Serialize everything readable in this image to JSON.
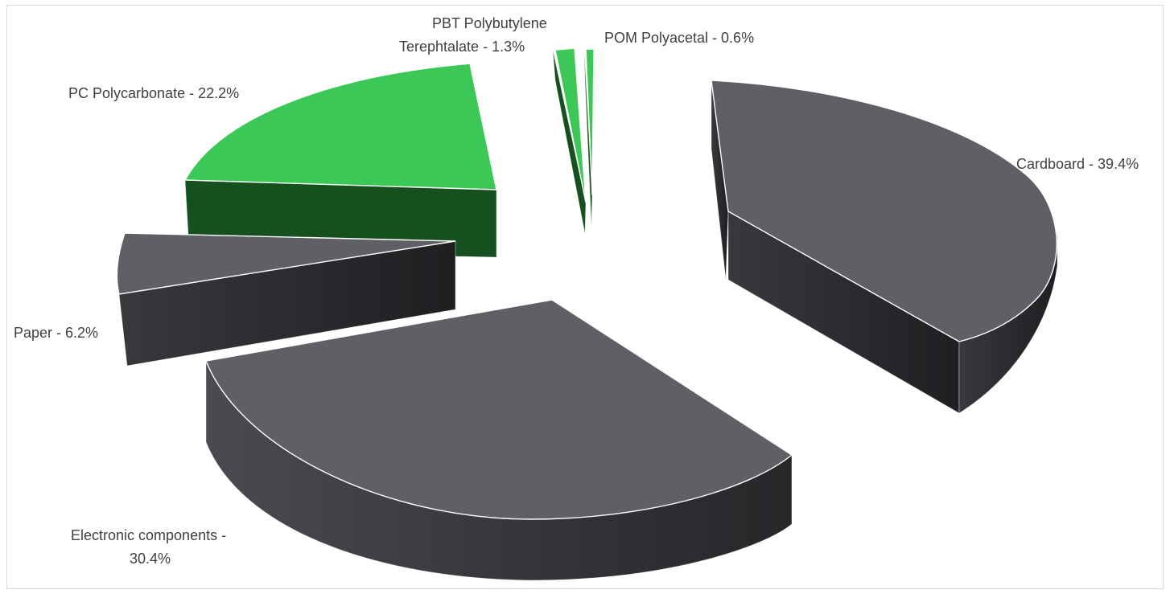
{
  "chart_data": {
    "type": "pie",
    "style": "3d-exploded",
    "title": "",
    "legend": "none",
    "data_labels": "category - percentage, outside",
    "slices": [
      {
        "key": "cardboard",
        "category": "Cardboard",
        "value": 39.4,
        "label_line1": "Cardboard - 39.4%",
        "label_line2": "",
        "color": "#5f6066",
        "side_color": "#2b2b2e"
      },
      {
        "key": "electronics",
        "category": "Electronic components",
        "value": 30.4,
        "label_line1": "Electronic components -",
        "label_line2": "30.4%",
        "color": "#5f6066",
        "side_color": "#2b2b2e"
      },
      {
        "key": "paper",
        "category": "Paper",
        "value": 6.2,
        "label_line1": "Paper - 6.2%",
        "label_line2": "",
        "color": "#5f6066",
        "side_color": "#2b2b2e"
      },
      {
        "key": "pc",
        "category": "PC Polycarbonate",
        "value": 22.2,
        "label_line1": "PC Polycarbonate - 22.2%",
        "label_line2": "",
        "color": "#3cc857",
        "side_color": "#17501f"
      },
      {
        "key": "pbt",
        "category": "PBT Polybutylene Terephtalate",
        "value": 1.3,
        "label_line1": "PBT Polybutylene",
        "label_line2": "Terephtalate - 1.3%",
        "color": "#3cc857",
        "side_color": "#17501f"
      },
      {
        "key": "pom",
        "category": "POM Polyacetal",
        "value": 0.6,
        "label_line1": "POM Polyacetal - 0.6%",
        "label_line2": "",
        "color": "#3cc857",
        "side_color": "#17501f"
      }
    ]
  }
}
